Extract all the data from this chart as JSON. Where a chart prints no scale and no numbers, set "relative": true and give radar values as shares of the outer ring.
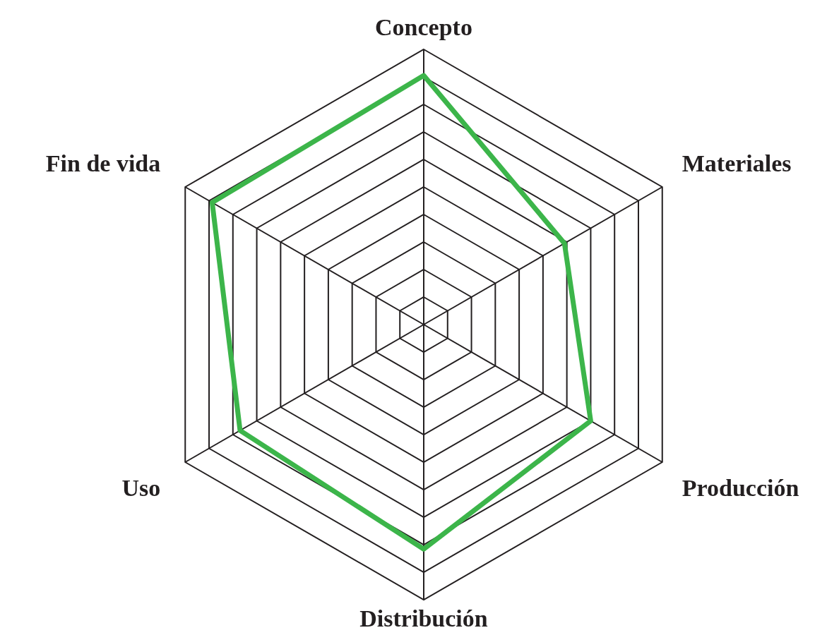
{
  "chart_data": {
    "type": "radar",
    "relative": true,
    "grid": true,
    "categories": [
      "Concepto",
      "Materiales",
      "Producción",
      "Distribución",
      "Uso",
      "Fin de vida"
    ],
    "series": [
      {
        "color": "#3cb54a",
        "values": [
          0.905,
          0.59,
          0.7,
          0.816,
          0.77,
          0.887
        ]
      }
    ]
  }
}
